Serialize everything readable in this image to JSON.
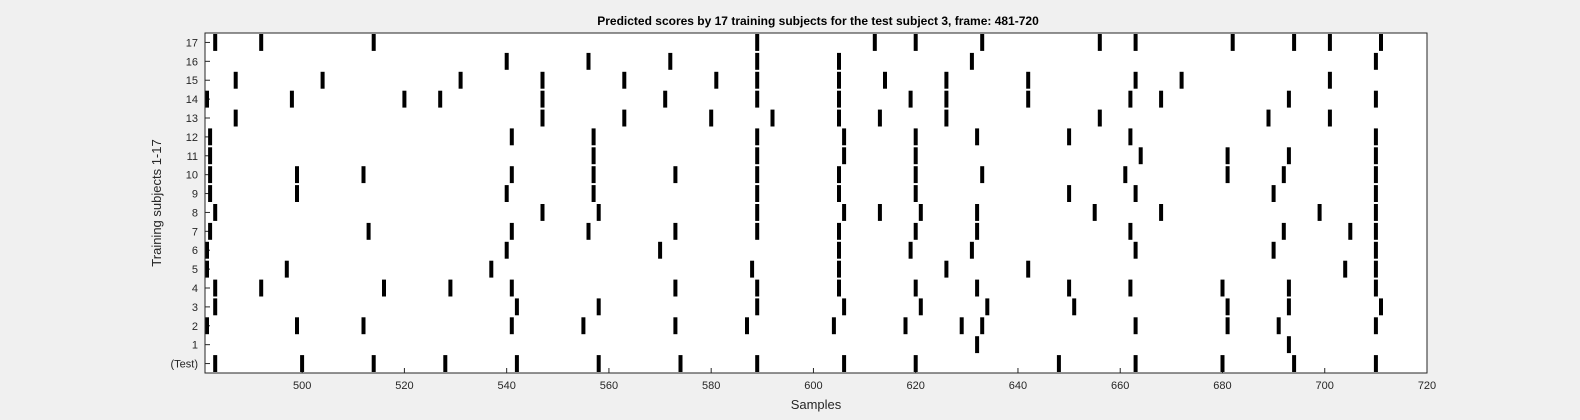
{
  "chart_data": {
    "type": "scatter",
    "title": "Predicted scores by 17 training subjects for the test subject 3, frame: 481-720",
    "xlabel": "Samples",
    "ylabel": "Training subjects 1-17",
    "xlim": [
      481,
      720
    ],
    "x_ticks": [
      500,
      520,
      540,
      560,
      580,
      600,
      620,
      640,
      660,
      680,
      700,
      720
    ],
    "y_tick_labels": [
      "(Test)",
      "1",
      "2",
      "3",
      "4",
      "5",
      "6",
      "7",
      "8",
      "9",
      "10",
      "11",
      "12",
      "13",
      "14",
      "15",
      "16",
      "17"
    ],
    "grid": false,
    "marker": "vertical-bar",
    "marker_color": "#000000",
    "series": [
      {
        "name": "(Test)",
        "values": [
          483,
          500,
          514,
          528,
          542,
          558,
          574,
          589,
          606,
          620,
          648,
          663,
          680,
          694,
          710
        ]
      },
      {
        "name": "1",
        "values": [
          632,
          693
        ]
      },
      {
        "name": "2",
        "values": [
          481,
          499,
          512,
          541,
          555,
          573,
          587,
          604,
          618,
          629,
          633,
          663,
          681,
          691,
          710
        ]
      },
      {
        "name": "3",
        "values": [
          483,
          542,
          558,
          589,
          606,
          621,
          634,
          651,
          681,
          693,
          711
        ]
      },
      {
        "name": "4",
        "values": [
          483,
          492,
          516,
          529,
          541,
          573,
          589,
          605,
          620,
          632,
          650,
          662,
          680,
          693,
          710
        ]
      },
      {
        "name": "5",
        "values": [
          481,
          497,
          537,
          588,
          605,
          626,
          642,
          704,
          710
        ]
      },
      {
        "name": "6",
        "values": [
          481,
          540,
          570,
          605,
          619,
          631,
          663,
          690,
          710
        ]
      },
      {
        "name": "7",
        "values": [
          482,
          513,
          541,
          556,
          573,
          589,
          605,
          620,
          632,
          662,
          692,
          705,
          710
        ]
      },
      {
        "name": "8",
        "values": [
          483,
          547,
          558,
          589,
          606,
          613,
          621,
          632,
          655,
          668,
          699,
          710
        ]
      },
      {
        "name": "9",
        "values": [
          482,
          499,
          540,
          557,
          589,
          605,
          620,
          650,
          663,
          690,
          710
        ]
      },
      {
        "name": "10",
        "values": [
          482,
          499,
          512,
          541,
          557,
          573,
          589,
          605,
          620,
          633,
          661,
          681,
          692,
          710
        ]
      },
      {
        "name": "11",
        "values": [
          482,
          557,
          589,
          606,
          620,
          664,
          681,
          693,
          710
        ]
      },
      {
        "name": "12",
        "values": [
          482,
          541,
          557,
          589,
          606,
          620,
          632,
          650,
          662,
          710
        ]
      },
      {
        "name": "13",
        "values": [
          487,
          547,
          563,
          580,
          592,
          605,
          613,
          626,
          656,
          689,
          701
        ]
      },
      {
        "name": "14",
        "values": [
          481,
          498,
          520,
          527,
          547,
          571,
          589,
          605,
          619,
          626,
          642,
          662,
          668,
          693,
          710
        ]
      },
      {
        "name": "15",
        "values": [
          487,
          504,
          531,
          547,
          563,
          581,
          589,
          605,
          614,
          626,
          642,
          663,
          672,
          701
        ]
      },
      {
        "name": "16",
        "values": [
          540,
          556,
          572,
          589,
          605,
          631,
          710
        ]
      },
      {
        "name": "17",
        "values": [
          483,
          492,
          514,
          589,
          612,
          620,
          633,
          656,
          663,
          682,
          694,
          701,
          711
        ]
      }
    ]
  }
}
